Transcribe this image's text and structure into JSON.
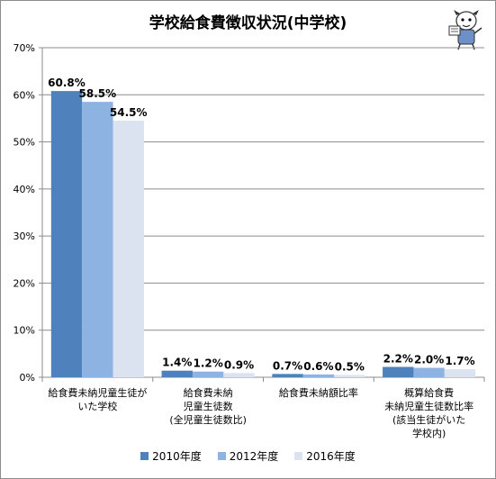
{
  "chart_data": {
    "type": "bar",
    "title": "学校給食費徴収状況(中学校)",
    "categories": [
      [
        "給食費未納児童生徒が",
        "いた学校"
      ],
      [
        "給食費未納",
        "児童生徒数",
        "(全児童生徒数比)"
      ],
      [
        "給食費未納額比率"
      ],
      [
        "概算給食費",
        "未納児童生徒数比率",
        "(該当生徒がいた",
        "学校内)"
      ]
    ],
    "series": [
      {
        "name": "2010年度",
        "values": [
          60.8,
          1.4,
          0.7,
          2.2
        ],
        "labels": [
          "60.8%",
          "1.4%",
          "0.7%",
          "2.2%"
        ],
        "color": "#4f81bd"
      },
      {
        "name": "2012年度",
        "values": [
          58.5,
          1.2,
          0.6,
          2.0
        ],
        "labels": [
          "58.5%",
          "1.2%",
          "0.6%",
          "2.0%"
        ],
        "color": "#8db3e2"
      },
      {
        "name": "2016年度",
        "values": [
          54.5,
          0.9,
          0.5,
          1.7
        ],
        "labels": [
          "54.5%",
          "0.9%",
          "0.5%",
          "1.7%"
        ],
        "color": "#dbe3f1"
      }
    ],
    "yticks": [
      "0%",
      "10%",
      "20%",
      "30%",
      "40%",
      "50%",
      "60%",
      "70%"
    ],
    "ylim": [
      0,
      70
    ],
    "grid": true,
    "legend_position": "bottom"
  }
}
